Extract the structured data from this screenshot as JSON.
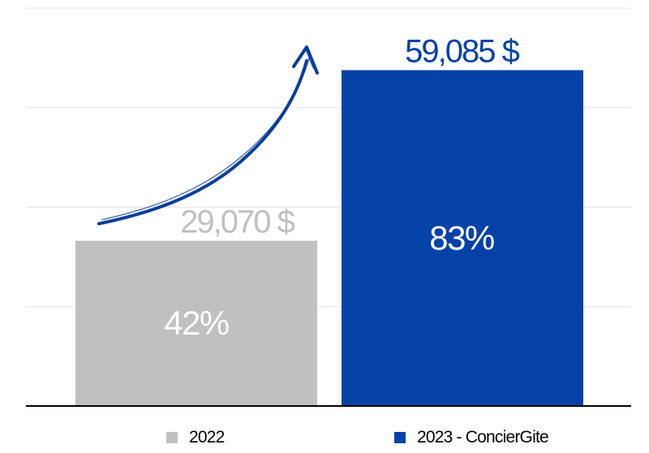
{
  "chart_data": {
    "type": "bar",
    "categories": [
      "2022",
      "2023 - ConcierGite"
    ],
    "values": [
      29070,
      59085
    ],
    "value_labels": [
      "29,070 $",
      "59,085 $"
    ],
    "percent_labels": [
      "42%",
      "83%"
    ],
    "percent_values": [
      42,
      83
    ],
    "colors": [
      "#c0c0c0",
      "#0542a8"
    ],
    "value_label_colors": [
      "#c0c0c0",
      "#0542a8"
    ],
    "title": "",
    "xlabel": "",
    "ylabel": "",
    "ylim": [
      0,
      70000
    ],
    "grid": true,
    "legend": "bottom",
    "annotation": "growth-arrow"
  },
  "legend": {
    "items": [
      {
        "label": "2022",
        "color": "#c0c0c0"
      },
      {
        "label": "2023 - ConcierGite",
        "color": "#0542a8"
      }
    ]
  }
}
